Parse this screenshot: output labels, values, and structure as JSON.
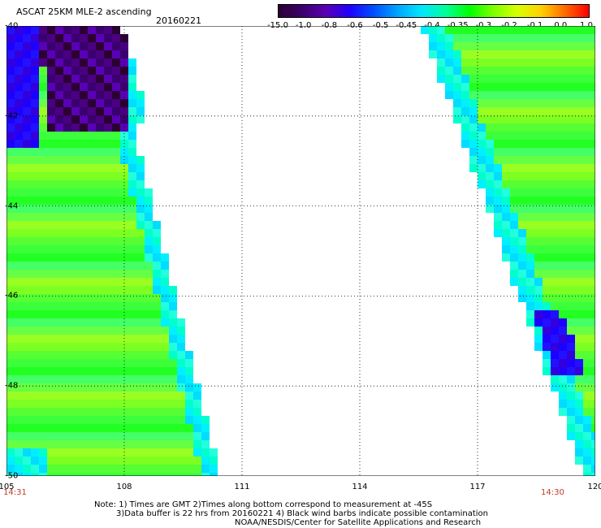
{
  "header": {
    "title": "ASCAT 25KM MLE-2 ascending",
    "date": "20160221"
  },
  "colorbar": {
    "ticks": [
      "-15.0",
      "-1.0",
      "-0.8",
      "-0.6",
      "-0.5",
      "-0.45",
      "-0.4",
      "-0.35",
      "-0.3",
      "-0.2",
      "-0.1",
      "0.0",
      "1.0"
    ],
    "colors": [
      "#2b0033",
      "#3b006b",
      "#5a00b5",
      "#1e00ff",
      "#0050ff",
      "#00a6ff",
      "#00e6ff",
      "#00ff9a",
      "#00ff00",
      "#7dff00",
      "#d8ff00",
      "#ffd000",
      "#ff6a00",
      "#ff0000"
    ]
  },
  "axes": {
    "lat_labels": [
      "-40",
      "-42",
      "-44",
      "-46",
      "-48",
      "-50"
    ],
    "lon_labels": [
      "105",
      "108",
      "111",
      "114",
      "117",
      "120"
    ],
    "lat_range": [
      -40,
      -50
    ],
    "lon_range": [
      105,
      120
    ]
  },
  "times": {
    "left": "14:31",
    "right": "14:30"
  },
  "notes": {
    "line1": "Note: 1) Times are GMT 2)Times along bottom correspond to measurement at -45S",
    "line2": "3)Data buffer is 22 hrs from 20160221 4) Black wind barbs indicate possible contamination",
    "line3": "NOAA/NESDIS/Center for Satellite Applications and Research"
  },
  "chart_data": {
    "type": "heatmap",
    "title": "ASCAT 25KM MLE-2 ascending",
    "x_range": [
      105,
      120
    ],
    "y_range": [
      -40,
      -50
    ],
    "swaths": [
      {
        "name": "left swath",
        "dominant_values": [
          -0.35,
          -0.3
        ],
        "features": [
          "purple -1.0 to -0.8 region near 105-108E, 40-42S",
          "cyan -0.45 band along east edge"
        ]
      },
      {
        "name": "right swath",
        "dominant_values": [
          -0.35,
          -0.3
        ],
        "features": [
          "blue -0.6 patch near 118-119E, 47S"
        ]
      }
    ]
  }
}
